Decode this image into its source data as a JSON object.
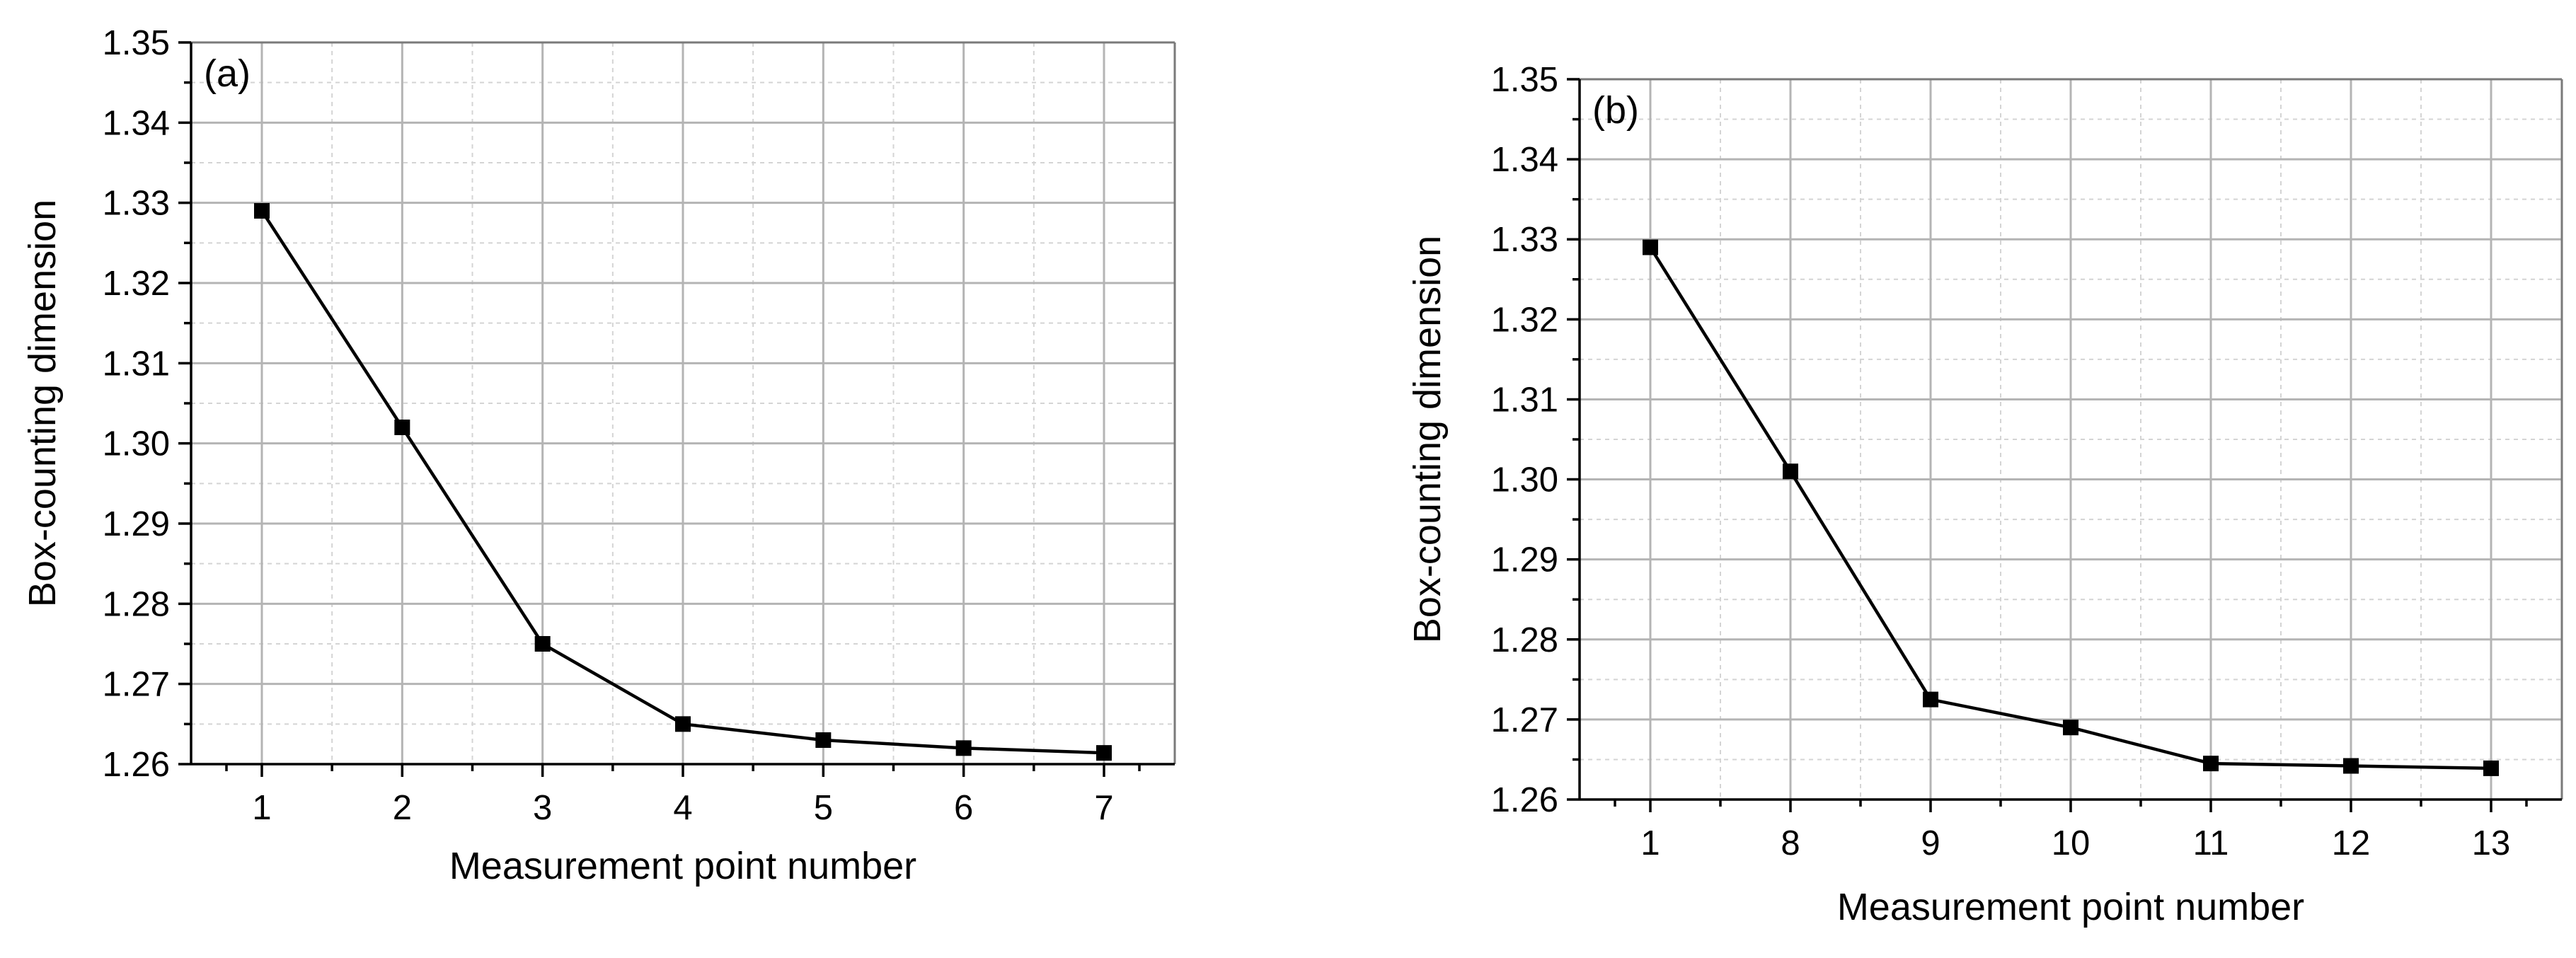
{
  "chart_data": [
    {
      "type": "line",
      "panel_label": "(a)",
      "title": "",
      "xlabel": "Measurement point number",
      "ylabel": "Box-counting dimension",
      "categories": [
        "1",
        "2",
        "3",
        "4",
        "5",
        "6",
        "7"
      ],
      "series": [
        {
          "values": [
            1.329,
            1.302,
            1.275,
            1.265,
            1.263,
            1.262,
            1.2614
          ]
        }
      ],
      "ylim": [
        1.26,
        1.35
      ],
      "yticks": [
        "1.26",
        "1.27",
        "1.28",
        "1.29",
        "1.30",
        "1.31",
        "1.32",
        "1.33",
        "1.34",
        "1.35"
      ],
      "grid": true,
      "marker": "square"
    },
    {
      "type": "line",
      "panel_label": "(b)",
      "title": "",
      "xlabel": "Measurement point number",
      "ylabel": "Box-counting dimension",
      "categories": [
        "1",
        "8",
        "9",
        "10",
        "11",
        "12",
        "13"
      ],
      "series": [
        {
          "values": [
            1.329,
            1.301,
            1.2725,
            1.269,
            1.2645,
            1.2642,
            1.2639
          ]
        }
      ],
      "ylim": [
        1.26,
        1.35
      ],
      "yticks": [
        "1.26",
        "1.27",
        "1.28",
        "1.29",
        "1.30",
        "1.31",
        "1.32",
        "1.33",
        "1.34",
        "1.35"
      ],
      "grid": true,
      "marker": "square"
    }
  ]
}
